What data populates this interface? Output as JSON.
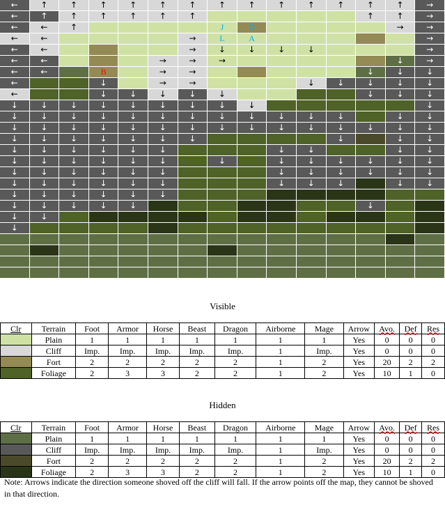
{
  "colors": {
    "P": "#cfe2a4",
    "C": "#d8d8d8",
    "F": "#948a54",
    "G": "#4f6228",
    "p": "#5f6f45",
    "c": "#595959",
    "f": "#4a4a2a",
    "g": "#2a3518"
  },
  "arrows": {
    "u": "↑",
    "d": "↓",
    "l": "←",
    "r": "→"
  },
  "map_rows": [
    [
      "c",
      "C",
      "C",
      "C",
      "C",
      "C",
      "C",
      "C",
      "C",
      "C",
      "C",
      "C",
      "C",
      "C",
      "c"
    ],
    [
      "c",
      "c",
      "C",
      "C",
      "C",
      "C",
      "C",
      "P",
      "P",
      "P",
      "P",
      "P",
      "C",
      "C",
      "c"
    ],
    [
      "c",
      "C",
      "C",
      "P",
      "P",
      "P",
      "P",
      "P",
      "F",
      "P",
      "P",
      "P",
      "P",
      "C",
      "c"
    ],
    [
      "C",
      "C",
      "P",
      "P",
      "P",
      "P",
      "C",
      "P",
      "P",
      "P",
      "P",
      "P",
      "F",
      "P",
      "c"
    ],
    [
      "c",
      "C",
      "P",
      "F",
      "P",
      "P",
      "C",
      "P",
      "P",
      "P",
      "P",
      "P",
      "P",
      "P",
      "c"
    ],
    [
      "c",
      "c",
      "P",
      "F",
      "P",
      "C",
      "C",
      "P",
      "P",
      "P",
      "P",
      "P",
      "F",
      "p",
      "c"
    ],
    [
      "c",
      "c",
      "p",
      "F",
      "P",
      "C",
      "C",
      "P",
      "F",
      "P",
      "P",
      "P",
      "p",
      "c",
      "c"
    ],
    [
      "c",
      "G",
      "G",
      "c",
      "P",
      "C",
      "C",
      "P",
      "P",
      "P",
      "C",
      "c",
      "c",
      "c",
      "c"
    ],
    [
      "C",
      "G",
      "G",
      "c",
      "c",
      "C",
      "c",
      "C",
      "P",
      "P",
      "G",
      "G",
      "c",
      "c",
      "c"
    ],
    [
      "c",
      "c",
      "c",
      "c",
      "c",
      "c",
      "c",
      "c",
      "C",
      "G",
      "G",
      "G",
      "G",
      "G",
      "c"
    ],
    [
      "c",
      "c",
      "c",
      "c",
      "c",
      "c",
      "c",
      "c",
      "c",
      "c",
      "c",
      "c",
      "G",
      "c",
      "c"
    ],
    [
      "c",
      "c",
      "c",
      "c",
      "c",
      "c",
      "c",
      "c",
      "c",
      "c",
      "c",
      "c",
      "c",
      "c",
      "c"
    ],
    [
      "c",
      "c",
      "c",
      "c",
      "c",
      "c",
      "c",
      "G",
      "G",
      "G",
      "G",
      "c",
      "f",
      "c",
      "c"
    ],
    [
      "c",
      "c",
      "c",
      "c",
      "c",
      "c",
      "G",
      "G",
      "G",
      "c",
      "c",
      "G",
      "G",
      "c",
      "c"
    ],
    [
      "c",
      "c",
      "c",
      "c",
      "c",
      "c",
      "G",
      "c",
      "G",
      "c",
      "c",
      "c",
      "c",
      "c",
      "c"
    ],
    [
      "c",
      "c",
      "c",
      "c",
      "c",
      "c",
      "G",
      "G",
      "G",
      "c",
      "c",
      "c",
      "c",
      "c",
      "c"
    ],
    [
      "c",
      "c",
      "c",
      "c",
      "c",
      "c",
      "G",
      "G",
      "G",
      "c",
      "c",
      "c",
      "g",
      "c",
      "c"
    ],
    [
      "c",
      "c",
      "c",
      "c",
      "c",
      "c",
      "G",
      "G",
      "G",
      "g",
      "g",
      "g",
      "g",
      "G",
      "G"
    ],
    [
      "c",
      "c",
      "c",
      "c",
      "c",
      "g",
      "G",
      "G",
      "g",
      "g",
      "G",
      "G",
      "c",
      "G",
      "g"
    ],
    [
      "c",
      "c",
      "G",
      "g",
      "g",
      "g",
      "g",
      "G",
      "g",
      "g",
      "G",
      "g",
      "g",
      "G",
      "g"
    ],
    [
      "c",
      "G",
      "G",
      "G",
      "G",
      "g",
      "G",
      "G",
      "G",
      "G",
      "G",
      "G",
      "G",
      "G",
      "g"
    ],
    [
      "p",
      "p",
      "p",
      "p",
      "p",
      "p",
      "p",
      "p",
      "p",
      "p",
      "p",
      "p",
      "p",
      "g",
      "p"
    ],
    [
      "p",
      "g",
      "p",
      "p",
      "p",
      "p",
      "p",
      "g",
      "p",
      "p",
      "p",
      "p",
      "p",
      "p",
      "p"
    ],
    [
      "p",
      "p",
      "p",
      "p",
      "p",
      "p",
      "p",
      "p",
      "p",
      "p",
      "p",
      "p",
      "p",
      "p",
      "p"
    ],
    [
      "p",
      "p",
      "p",
      "p",
      "p",
      "p",
      "p",
      "p",
      "p",
      "p",
      "p",
      "p",
      "p",
      "p",
      "p"
    ]
  ],
  "arrow_rows": [
    [
      "l",
      "u",
      "u",
      "u",
      "u",
      "u",
      "u",
      "u",
      "u",
      "u",
      "u",
      "u",
      "u",
      "u",
      "r"
    ],
    [
      "l",
      "u",
      "u",
      "u",
      "u",
      "u",
      "u",
      "",
      "",
      "",
      "",
      "",
      "u",
      "u",
      "r"
    ],
    [
      "l",
      "l",
      "u",
      "",
      "",
      "",
      "",
      "",
      "",
      "",
      "",
      "",
      "",
      "r",
      "r"
    ],
    [
      "l",
      "l",
      "",
      "",
      "",
      "",
      "r",
      "",
      "",
      "",
      "",
      "",
      "",
      "",
      "r"
    ],
    [
      "l",
      "l",
      "",
      "",
      "",
      "",
      "r",
      "d",
      "d",
      "d",
      "d",
      "",
      "",
      "",
      "r"
    ],
    [
      "l",
      "l",
      "",
      "",
      "",
      "r",
      "r",
      "r",
      "",
      "",
      "",
      "",
      "",
      "d",
      "r"
    ],
    [
      "l",
      "l",
      "",
      "",
      "",
      "r",
      "r",
      "",
      "",
      "",
      "",
      "",
      "d",
      "d",
      "d"
    ],
    [
      "l",
      "",
      "",
      "d",
      "",
      "r",
      "r",
      "",
      "",
      "",
      "d",
      "d",
      "d",
      "d",
      "d"
    ],
    [
      "l",
      "",
      "",
      "d",
      "d",
      "d",
      "d",
      "d",
      "",
      "",
      "",
      "",
      "d",
      "d",
      "d"
    ],
    [
      "d",
      "d",
      "d",
      "d",
      "d",
      "d",
      "d",
      "d",
      "d",
      "",
      "",
      "",
      "",
      "",
      "d"
    ],
    [
      "d",
      "d",
      "d",
      "d",
      "d",
      "d",
      "d",
      "d",
      "d",
      "d",
      "d",
      "d",
      "",
      "d",
      "d"
    ],
    [
      "d",
      "d",
      "d",
      "d",
      "d",
      "d",
      "d",
      "d",
      "d",
      "d",
      "d",
      "d",
      "d",
      "d",
      "d"
    ],
    [
      "d",
      "d",
      "d",
      "d",
      "d",
      "d",
      "d",
      "",
      "",
      "",
      "",
      "d",
      "",
      "d",
      "d"
    ],
    [
      "d",
      "d",
      "d",
      "d",
      "d",
      "d",
      "",
      "",
      "",
      "d",
      "d",
      "",
      "",
      "d",
      "d"
    ],
    [
      "d",
      "d",
      "d",
      "d",
      "d",
      "d",
      "",
      "d",
      "",
      "d",
      "d",
      "d",
      "d",
      "d",
      "d"
    ],
    [
      "d",
      "d",
      "d",
      "d",
      "d",
      "d",
      "",
      "",
      "",
      "d",
      "d",
      "d",
      "d",
      "d",
      "d"
    ],
    [
      "d",
      "d",
      "d",
      "d",
      "d",
      "d",
      "",
      "",
      "",
      "d",
      "d",
      "d",
      "",
      "d",
      "d"
    ],
    [
      "d",
      "d",
      "d",
      "d",
      "d",
      "d",
      "",
      "",
      "",
      "",
      "",
      "",
      "",
      "",
      ""
    ],
    [
      "d",
      "d",
      "d",
      "d",
      "d",
      "",
      "",
      "",
      "",
      "",
      "",
      "",
      "d",
      "",
      ""
    ],
    [
      "d",
      "d",
      "",
      "",
      "",
      "",
      "",
      "",
      "",
      "",
      "",
      "",
      "",
      "",
      ""
    ],
    [
      "d",
      "",
      "",
      "",
      "",
      "",
      "",
      "",
      "",
      "",
      "",
      "",
      "",
      "",
      ""
    ],
    [
      "",
      "",
      "",
      "",
      "",
      "",
      "",
      "",
      "",
      "",
      "",
      "",
      "",
      "",
      ""
    ],
    [
      "",
      "",
      "",
      "",
      "",
      "",
      "",
      "",
      "",
      "",
      "",
      "",
      "",
      "",
      ""
    ],
    [
      "",
      "",
      "",
      "",
      "",
      "",
      "",
      "",
      "",
      "",
      "",
      "",
      "",
      "",
      ""
    ],
    [
      "",
      "",
      "",
      "",
      "",
      "",
      "",
      "",
      "",
      "",
      "",
      "",
      "",
      "",
      ""
    ]
  ],
  "markers": [
    {
      "row": 2,
      "col": 7,
      "text": "J",
      "color": "#00b0f0"
    },
    {
      "row": 2,
      "col": 8,
      "text": "D",
      "color": "#00b0f0"
    },
    {
      "row": 3,
      "col": 7,
      "text": "L",
      "color": "#00b0f0"
    },
    {
      "row": 3,
      "col": 8,
      "text": "A",
      "color": "#00b0f0"
    },
    {
      "row": 6,
      "col": 3,
      "text": "B",
      "color": "#ff0000"
    }
  ],
  "visible": {
    "title": "Visible",
    "headers": [
      "Clr",
      "Terrain",
      "Foot",
      "Armor",
      "Horse",
      "Beast",
      "Dragon",
      "Airborne",
      "Mage",
      "Arrow",
      "Avo.",
      "Def",
      "Res"
    ],
    "rows": [
      {
        "clr": "P",
        "cells": [
          "Plain",
          "1",
          "1",
          "1",
          "1",
          "1",
          "1",
          "1",
          "Yes",
          "0",
          "0",
          "0"
        ]
      },
      {
        "clr": "C",
        "cells": [
          "Cliff",
          "Imp.",
          "Imp.",
          "Imp.",
          "Imp.",
          "Imp.",
          "1",
          "Imp.",
          "Yes",
          "0",
          "0",
          "0"
        ]
      },
      {
        "clr": "F",
        "cells": [
          "Fort",
          "2",
          "2",
          "2",
          "2",
          "2",
          "1",
          "2",
          "Yes",
          "20",
          "2",
          "2"
        ]
      },
      {
        "clr": "G",
        "cells": [
          "Foliage",
          "2",
          "3",
          "3",
          "2",
          "2",
          "1",
          "2",
          "Yes",
          "10",
          "1",
          "0"
        ]
      }
    ]
  },
  "hidden": {
    "title": "Hidden",
    "headers": [
      "Clr",
      "Terrain",
      "Foot",
      "Armor",
      "Horse",
      "Beast",
      "Dragon",
      "Airborne",
      "Mage",
      "Arrow",
      "Avo.",
      "Def",
      "Res"
    ],
    "rows": [
      {
        "clr": "p",
        "cells": [
          "Plain",
          "1",
          "1",
          "1",
          "1",
          "1",
          "1",
          "1",
          "Yes",
          "0",
          "0",
          "0"
        ]
      },
      {
        "clr": "c",
        "cells": [
          "Cliff",
          "Imp.",
          "Imp.",
          "Imp.",
          "Imp.",
          "Imp.",
          "1",
          "Imp.",
          "Yes",
          "0",
          "0",
          "0"
        ]
      },
      {
        "clr": "f",
        "cells": [
          "Fort",
          "2",
          "2",
          "2",
          "2",
          "2",
          "1",
          "2",
          "Yes",
          "20",
          "2",
          "2"
        ]
      },
      {
        "clr": "g",
        "cells": [
          "Foliage",
          "2",
          "3",
          "3",
          "2",
          "2",
          "1",
          "2",
          "Yes",
          "10",
          "1",
          "0"
        ]
      }
    ]
  },
  "note": "Note: Arrows indicate the direction someone shoved off the cliff will fall.  If the arrow points off the map, they cannot be shoved in that direction."
}
